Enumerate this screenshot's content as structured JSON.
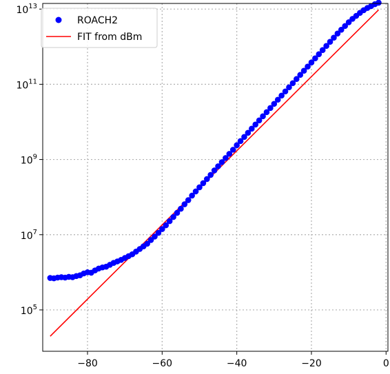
{
  "chart_data": {
    "type": "scatter",
    "title": "",
    "xlabel": "",
    "ylabel": "",
    "xlim": [
      -92,
      0.5
    ],
    "ylim_log10": [
      3.9,
      13.15
    ],
    "y_scale": "log",
    "grid": true,
    "legend_position": "top-left",
    "x_ticks": [
      {
        "value": -80,
        "label": "−80"
      },
      {
        "value": -60,
        "label": "−60"
      },
      {
        "value": -40,
        "label": "−40"
      },
      {
        "value": -20,
        "label": "−20"
      },
      {
        "value": 0,
        "label": "0"
      }
    ],
    "y_ticks": [
      {
        "exp": 5,
        "base": "10",
        "sup": "5"
      },
      {
        "exp": 7,
        "base": "10",
        "sup": "7"
      },
      {
        "exp": 9,
        "base": "10",
        "sup": "9"
      },
      {
        "exp": 11,
        "base": "10",
        "sup": "11"
      },
      {
        "exp": 13,
        "base": "10",
        "sup": "13"
      }
    ],
    "series": [
      {
        "name": "ROACH2",
        "kind": "scatter",
        "color": "#0000ff",
        "x": [
          -90,
          -89,
          -88,
          -87,
          -86,
          -85,
          -84,
          -83,
          -82,
          -81,
          -80,
          -79,
          -78,
          -77,
          -76,
          -75,
          -74,
          -73,
          -72,
          -71,
          -70,
          -69,
          -68,
          -67,
          -66,
          -65,
          -64,
          -63,
          -62,
          -61,
          -60,
          -59,
          -58,
          -57,
          -56,
          -55,
          -54,
          -53,
          -52,
          -51,
          -50,
          -49,
          -48,
          -47,
          -46,
          -45,
          -44,
          -43,
          -42,
          -41,
          -40,
          -39,
          -38,
          -37,
          -36,
          -35,
          -34,
          -33,
          -32,
          -31,
          -30,
          -29,
          -28,
          -27,
          -26,
          -25,
          -24,
          -23,
          -22,
          -21,
          -20,
          -19,
          -18,
          -17,
          -16,
          -15,
          -14,
          -13,
          -12,
          -11,
          -10,
          -9,
          -8,
          -7,
          -6,
          -5,
          -4,
          -3,
          -2
        ],
        "y_log10": [
          5.85,
          5.84,
          5.86,
          5.87,
          5.86,
          5.88,
          5.87,
          5.9,
          5.92,
          5.97,
          6.0,
          5.99,
          6.05,
          6.1,
          6.13,
          6.15,
          6.2,
          6.25,
          6.29,
          6.33,
          6.38,
          6.43,
          6.48,
          6.55,
          6.62,
          6.69,
          6.76,
          6.86,
          6.95,
          7.05,
          7.15,
          7.25,
          7.36,
          7.47,
          7.58,
          7.69,
          7.81,
          7.92,
          8.04,
          8.15,
          8.26,
          8.37,
          8.48,
          8.59,
          8.71,
          8.82,
          8.93,
          9.04,
          9.15,
          9.26,
          9.38,
          9.49,
          9.6,
          9.71,
          9.82,
          9.93,
          10.04,
          10.15,
          10.26,
          10.37,
          10.48,
          10.59,
          10.7,
          10.81,
          10.92,
          11.03,
          11.14,
          11.25,
          11.36,
          11.47,
          11.58,
          11.69,
          11.8,
          11.91,
          12.02,
          12.13,
          12.24,
          12.35,
          12.45,
          12.55,
          12.65,
          12.74,
          12.82,
          12.9,
          12.97,
          13.03,
          13.08,
          13.13,
          13.17
        ]
      },
      {
        "name": "FIT from dBm",
        "kind": "line",
        "color": "#ff0000",
        "x": [
          -90,
          -2
        ],
        "y_log10": [
          4.3,
          12.98
        ]
      }
    ]
  }
}
